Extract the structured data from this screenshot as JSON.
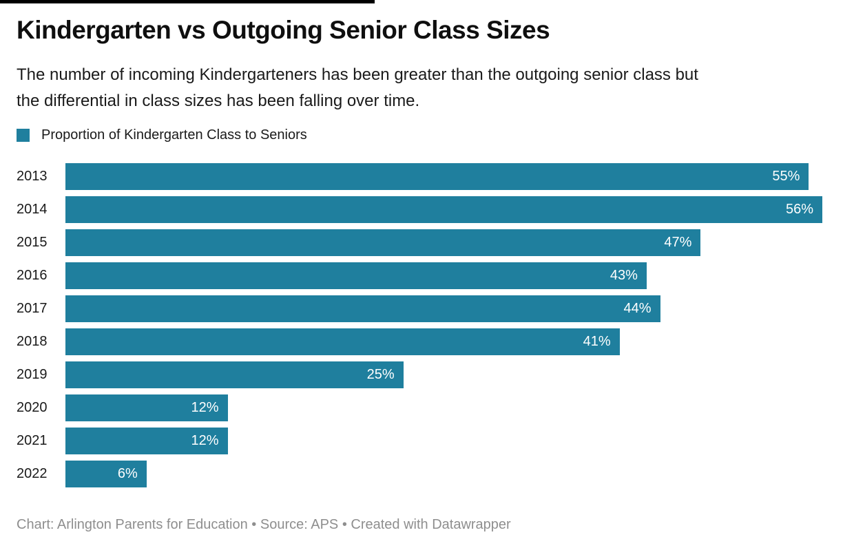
{
  "colors": {
    "bar": "#1f7f9e",
    "title": "#0f0f0f",
    "text": "#1a1a1a",
    "value_label": "#ffffff",
    "footer": "#8e8e8e",
    "top_edge_bar": "#000000"
  },
  "header": {
    "title": "Kindergarten vs Outgoing Senior Class Sizes",
    "subtitle": "The number of incoming Kindergarteners has been greater than the outgoing senior class but the differential in class sizes has been falling over time.",
    "subtitle_lines": [
      "The number of incoming Kindergarteners has been greater than the outgoing senior class but",
      "the differential in class sizes has been falling over time."
    ]
  },
  "legend": {
    "label": "Proportion of Kindergarten Class to Seniors",
    "swatch_color": "#1f7f9e"
  },
  "chart_data": {
    "type": "bar",
    "orientation": "horizontal",
    "title": "Kindergarten vs Outgoing Senior Class Sizes",
    "categories": [
      "2013",
      "2014",
      "2015",
      "2016",
      "2017",
      "2018",
      "2019",
      "2020",
      "2021",
      "2022"
    ],
    "series": [
      {
        "name": "Proportion of Kindergarten Class to Seniors",
        "values": [
          55,
          56,
          47,
          43,
          44,
          41,
          25,
          12,
          12,
          6
        ]
      }
    ],
    "value_labels": [
      "55%",
      "56%",
      "47%",
      "43%",
      "44%",
      "41%",
      "25%",
      "12%",
      "12%",
      "6%"
    ],
    "unit": "%",
    "xlim": [
      0,
      56
    ],
    "grid": false,
    "legend_position": "top-left",
    "bar_color": "#1f7f9e",
    "value_label_position": "inside-end"
  },
  "footer": {
    "text": "Chart: Arlington Parents for Education • Source: APS • Created with Datawrapper"
  }
}
